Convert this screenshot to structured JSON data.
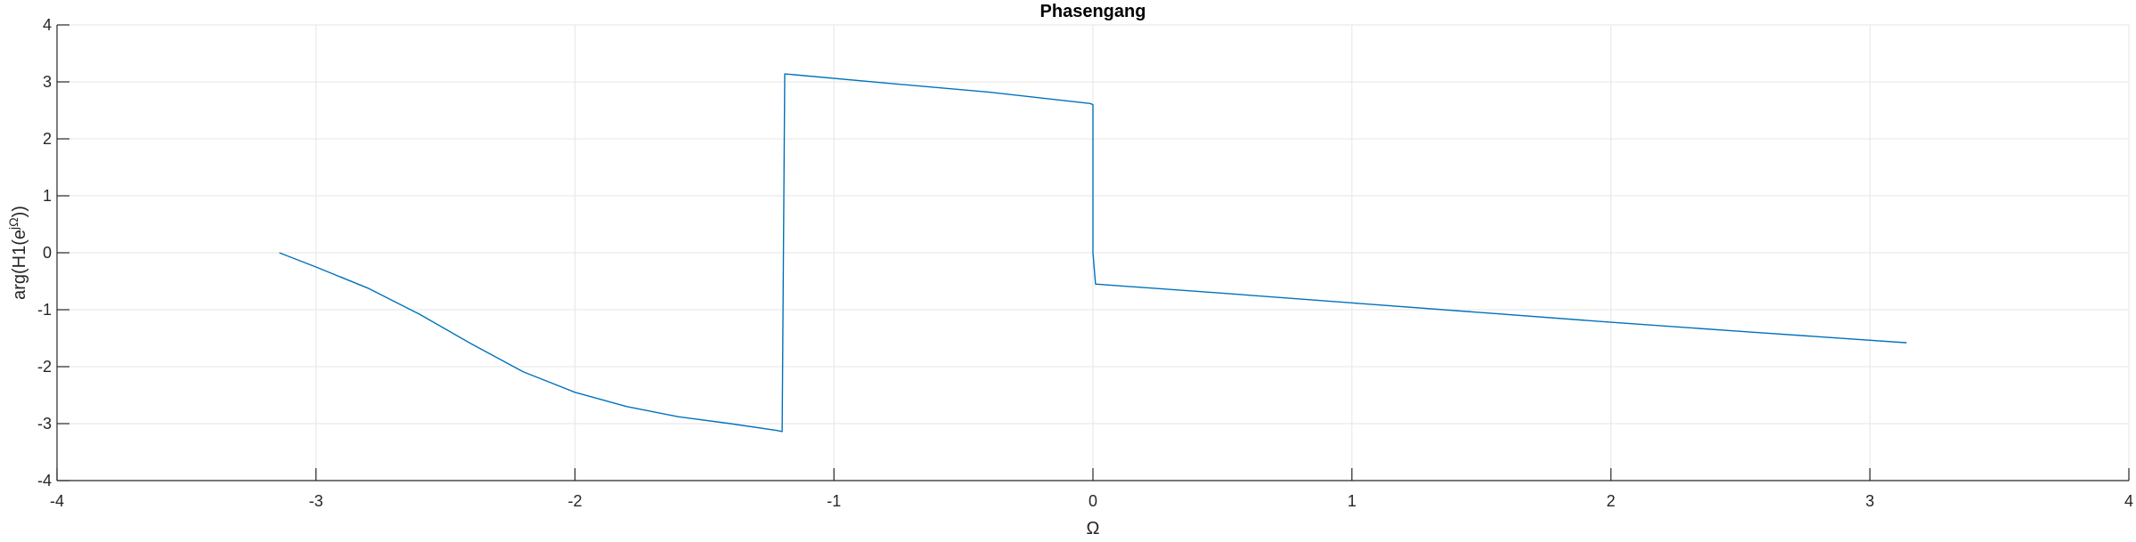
{
  "chart_data": {
    "type": "line",
    "title": "Phasengang",
    "xlabel": "Ω",
    "ylabel": {
      "prefix": "arg(H1(e",
      "superscript": "jΩ",
      "suffix": "))"
    },
    "xlim": [
      -4,
      4
    ],
    "ylim": [
      -4,
      4
    ],
    "xticks": [
      -4,
      -3,
      -2,
      -1,
      0,
      1,
      2,
      3,
      4
    ],
    "yticks": [
      -4,
      -3,
      -2,
      -1,
      0,
      1,
      2,
      3,
      4
    ],
    "grid": true,
    "line_color": "#0072BD",
    "series": [
      {
        "x": [
          -3.1416,
          -3.0,
          -2.8,
          -2.6,
          -2.4,
          -2.2,
          -2.0,
          -1.8,
          -1.6,
          -1.4,
          -1.22,
          -1.2,
          -1.19,
          -0.8,
          -0.4,
          -0.01,
          0.0,
          0.0,
          0.01,
          0.5,
          1.0,
          1.5,
          2.0,
          2.5,
          3.1416
        ],
        "y": [
          0.0,
          -0.25,
          -0.62,
          -1.08,
          -1.6,
          -2.09,
          -2.45,
          -2.7,
          -2.88,
          -3.0,
          -3.12,
          -3.14,
          3.14,
          2.98,
          2.82,
          2.62,
          2.6,
          0.0,
          -0.55,
          -0.71,
          -0.88,
          -1.05,
          -1.22,
          -1.38,
          -1.58
        ]
      }
    ]
  }
}
